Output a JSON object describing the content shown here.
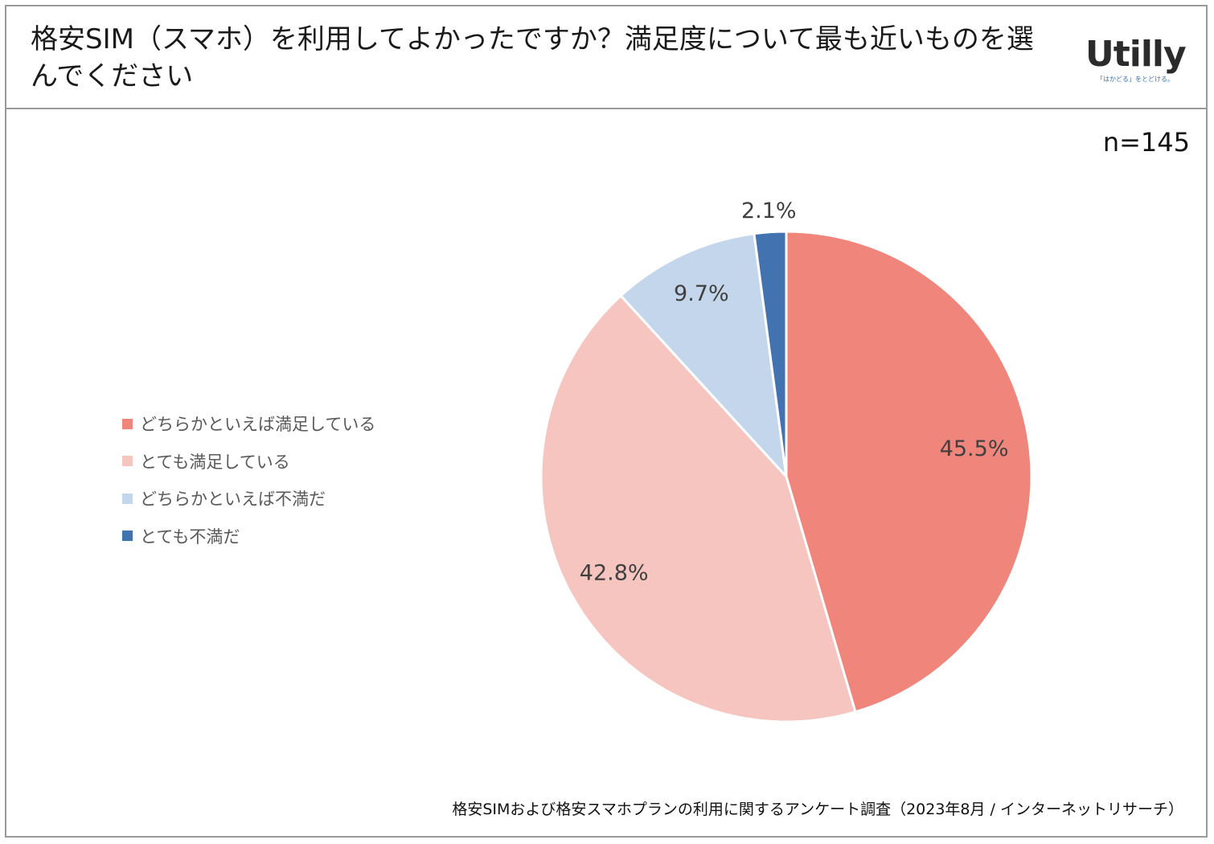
{
  "title": "格安SIM（スマホ）を利用してよかったですか？満足度について最も近いものを選んでください",
  "logo": {
    "name": "Utilly",
    "tagline": "「はかどる」をとどける。"
  },
  "sample_size": "n=145",
  "source": "格安SIMおよび格安スマホプランの利用に関するアンケート調査（2023年8月 / インターネットリサーチ）",
  "chart_data": {
    "type": "pie",
    "start_angle": "12 o'clock",
    "direction": "clockwise",
    "legend_position": "left",
    "slices": [
      {
        "label": "どちらかといえば満足している",
        "value": 45.5,
        "value_label": "45.5%",
        "color": "#f0857c"
      },
      {
        "label": "とても満足している",
        "value": 42.8,
        "value_label": "42.8%",
        "color": "#f6c5c0"
      },
      {
        "label": "どちらかといえば不満だ",
        "value": 9.7,
        "value_label": "9.7%",
        "color": "#c3d6ec"
      },
      {
        "label": "とても不満だ",
        "value": 2.1,
        "value_label": "2.1%",
        "color": "#4272b0"
      }
    ]
  }
}
